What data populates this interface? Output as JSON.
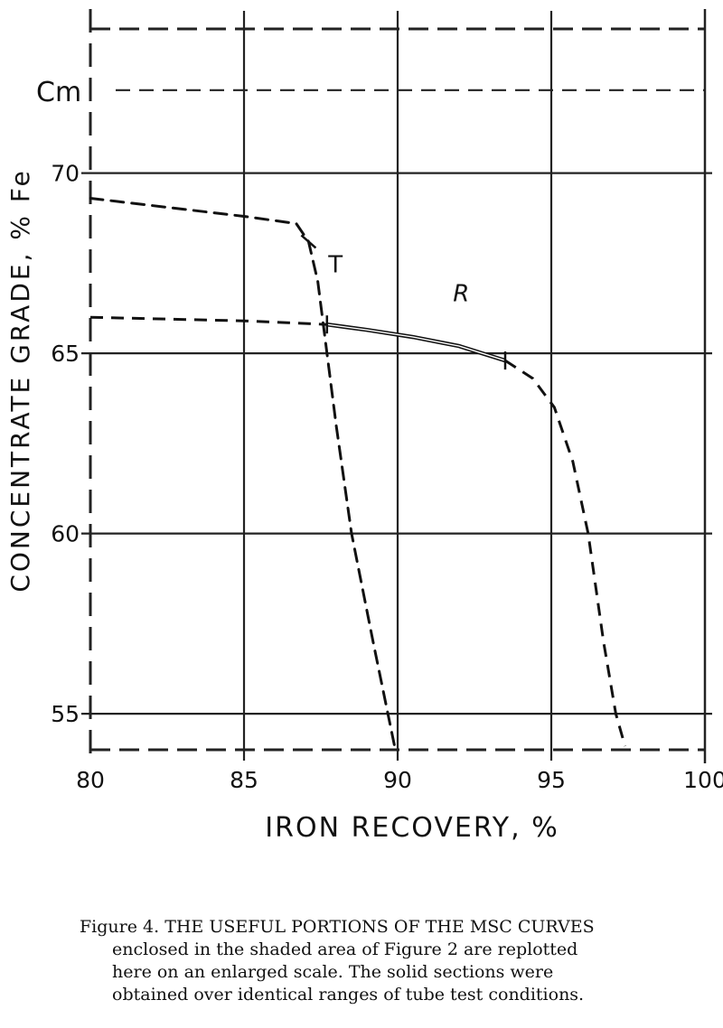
{
  "chart_data": {
    "type": "line",
    "title": "",
    "xlabel": "IRON RECOVERY, %",
    "ylabel": "CONCENTRATE GRADE, % Fe",
    "xlim": [
      80,
      100
    ],
    "ylim": [
      54,
      74
    ],
    "x_ticks": [
      80,
      85,
      90,
      95,
      100
    ],
    "y_ticks": [
      55,
      60,
      65,
      70
    ],
    "grid": true,
    "reference_line": {
      "label": "Cm",
      "y": 72.3
    },
    "series": [
      {
        "name": "T",
        "color": "#111111",
        "dashed": [
          [
            80,
            69.3
          ],
          [
            83,
            69.0
          ],
          [
            85,
            68.8
          ],
          [
            86.7,
            68.6
          ],
          [
            87.1,
            68.1
          ],
          [
            87.4,
            67.0
          ],
          [
            87.7,
            65.0
          ],
          [
            88.0,
            63.0
          ],
          [
            88.5,
            60.0
          ],
          [
            89.2,
            57.0
          ],
          [
            89.9,
            54.1
          ]
        ],
        "marker": [
          87.1,
          68.1
        ]
      },
      {
        "name": "R",
        "color": "#111111",
        "dashed_start": [
          [
            80,
            66.0
          ],
          [
            85,
            65.9
          ],
          [
            87.7,
            65.8
          ]
        ],
        "solid": [
          [
            87.7,
            65.8
          ],
          [
            89,
            65.65
          ],
          [
            90.5,
            65.45
          ],
          [
            92,
            65.2
          ],
          [
            93.5,
            64.8
          ]
        ],
        "dashed_end": [
          [
            93.5,
            64.8
          ],
          [
            94.4,
            64.3
          ],
          [
            95.1,
            63.5
          ],
          [
            95.7,
            62.0
          ],
          [
            96.2,
            60.0
          ],
          [
            96.7,
            57.0
          ],
          [
            97.1,
            55.0
          ],
          [
            97.4,
            54.1
          ]
        ],
        "markers": [
          [
            87.7,
            65.8
          ],
          [
            93.5,
            64.8
          ]
        ]
      }
    ]
  },
  "caption": {
    "line1": "Figure 4.   THE USEFUL PORTIONS OF THE MSC CURVES",
    "line2": "enclosed in the shaded area of Figure 2 are replotted",
    "line3": "here on an enlarged scale.   The solid sections were",
    "line4": "obtained over identical ranges of tube test conditions."
  }
}
